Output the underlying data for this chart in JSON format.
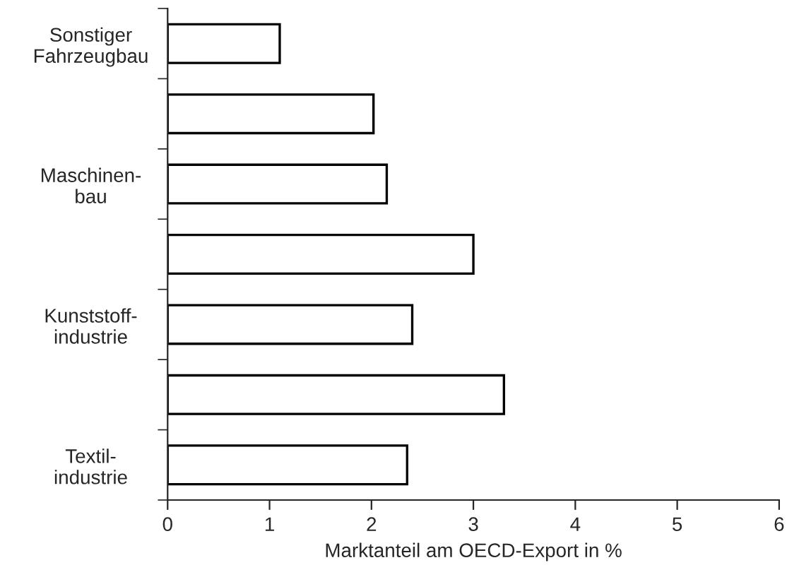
{
  "chart_data": {
    "type": "bar",
    "orientation": "horizontal",
    "xlabel": "Marktanteil am OECD-Export in %",
    "categories": [
      "Sonstiger\nFahrzeugbau",
      null,
      "Maschinen-\nbau",
      null,
      "Kunststoff-\nindustrie",
      null,
      "Textil-\nindustrie"
    ],
    "series": [
      {
        "color": "#ffffff",
        "values": [
          1.1,
          2.02,
          2.15,
          3.0,
          2.4,
          3.3,
          2.35
        ]
      }
    ],
    "xlim": [
      0,
      6
    ],
    "xticks": [
      0,
      1,
      2,
      3,
      4,
      5,
      6
    ],
    "grid": false,
    "legend": false
  }
}
